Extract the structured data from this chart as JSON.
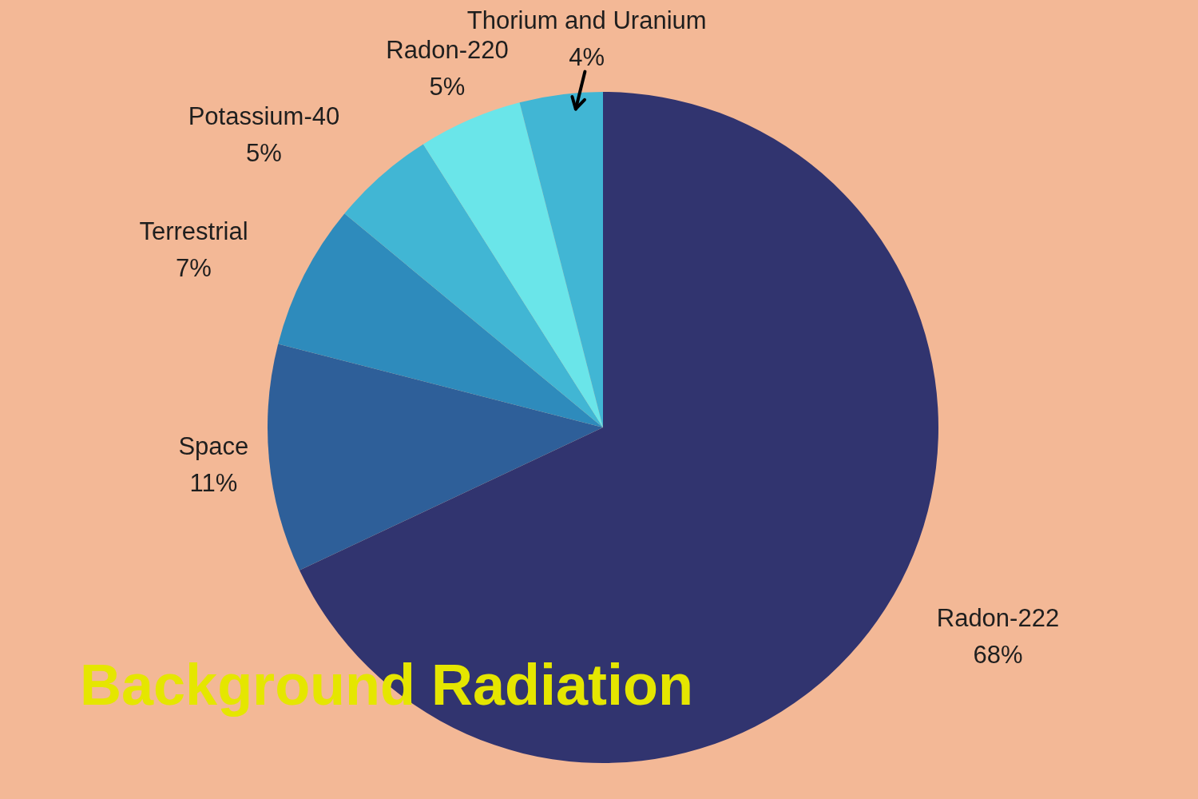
{
  "chart_data": {
    "type": "pie",
    "title": "Background Radiation",
    "categories": [
      "Radon-222",
      "Space",
      "Terrestrial",
      "Potassium-40",
      "Radon-220",
      "Thorium and Uranium"
    ],
    "values": [
      68,
      11,
      7,
      5,
      5,
      4
    ],
    "value_labels": [
      "68%",
      "11%",
      "7%",
      "5%",
      "5%",
      "4%"
    ],
    "colors": [
      "#31346f",
      "#2e5f99",
      "#2e8bbc",
      "#41b6d4",
      "#6ae5e9",
      "#41b6d4"
    ],
    "legend": false
  }
}
